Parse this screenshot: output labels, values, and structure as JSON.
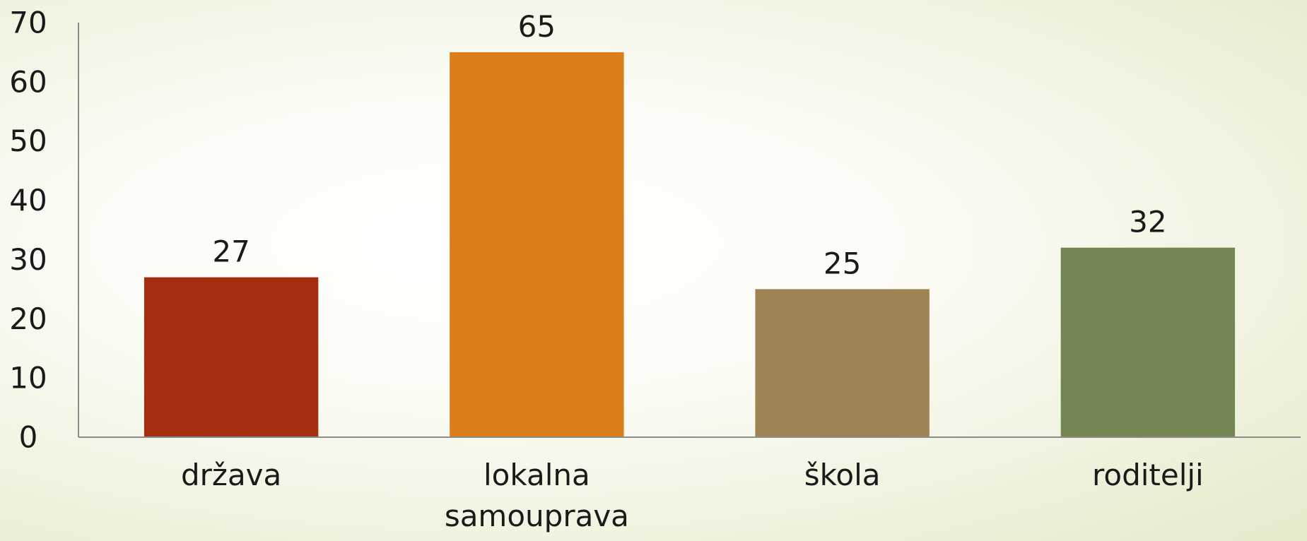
{
  "chart_data": {
    "type": "bar",
    "categories": [
      [
        "država"
      ],
      [
        "lokalna",
        "samouprava"
      ],
      [
        "škola"
      ],
      [
        "roditelji"
      ]
    ],
    "values": [
      27,
      65,
      25,
      32
    ],
    "colors": [
      "#a52e10",
      "#dd7c1a",
      "#a08354",
      "#738553"
    ],
    "title": "",
    "xlabel": "",
    "ylabel": "",
    "ylim": [
      0,
      70
    ],
    "yticks": [
      0,
      10,
      20,
      30,
      40,
      50,
      60,
      70
    ],
    "grid": false,
    "legend": "none",
    "axis_color": "#8c8c8c"
  }
}
